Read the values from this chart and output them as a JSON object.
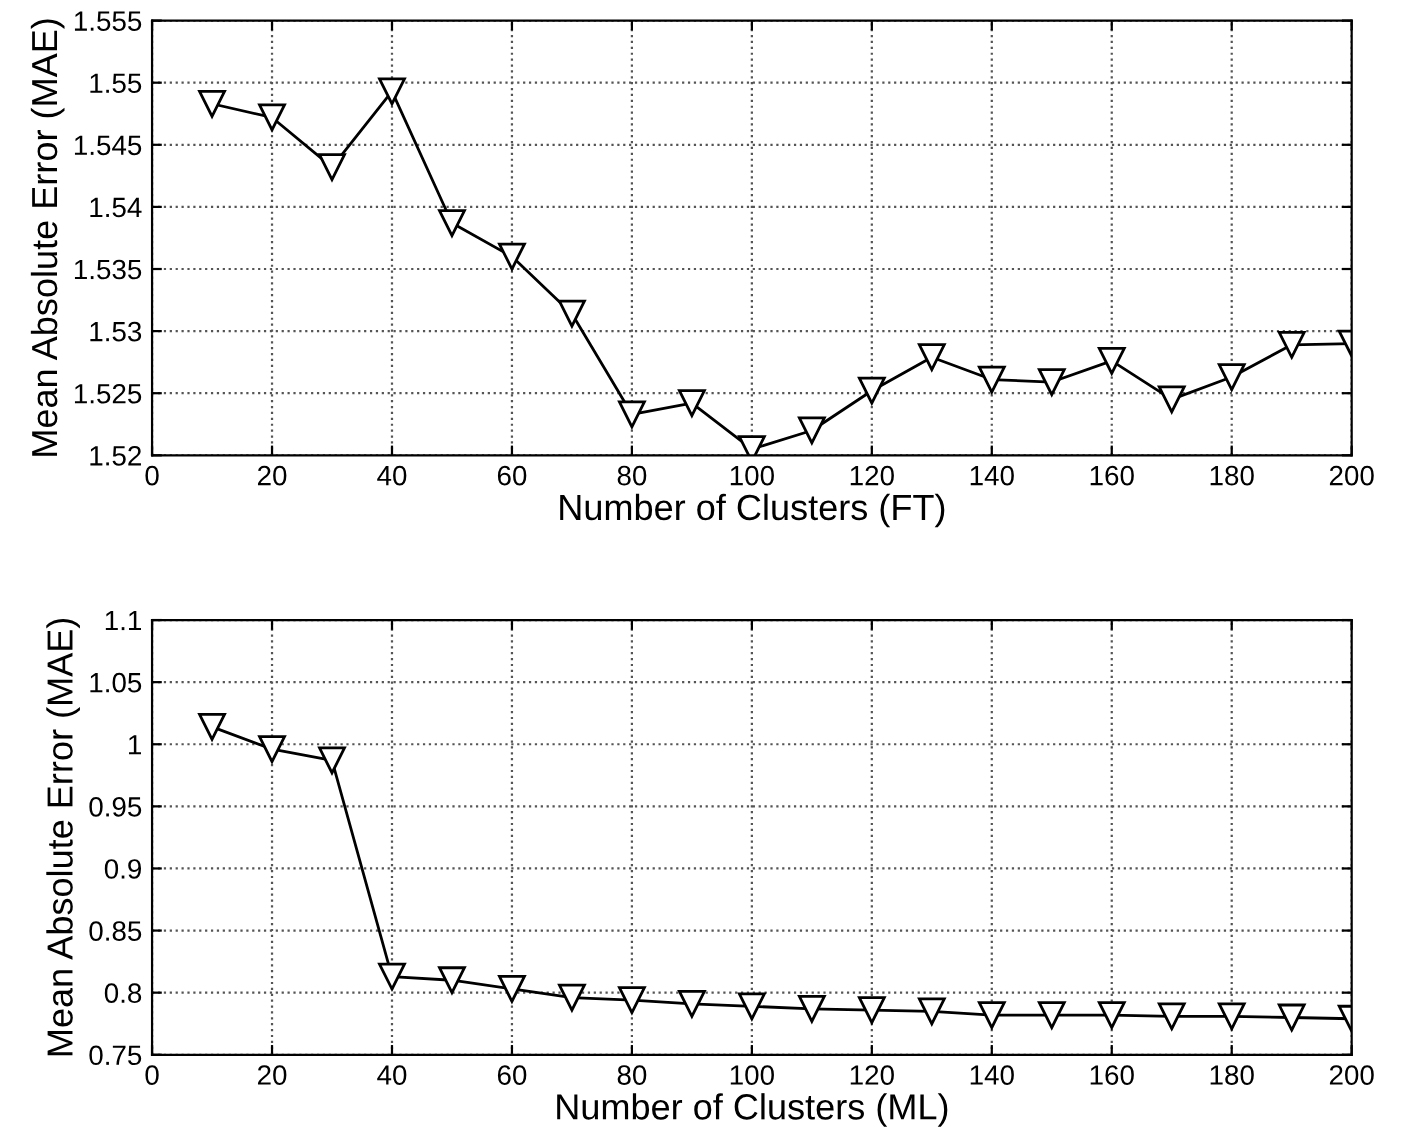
{
  "chart_data": [
    {
      "type": "line",
      "xlabel": "Number of Clusters (FT)",
      "ylabel": "Mean Absolute Error (MAE)",
      "marker": "triangle",
      "line_style": "solid",
      "grid": true,
      "x": [
        10,
        20,
        30,
        40,
        50,
        60,
        70,
        80,
        90,
        100,
        110,
        120,
        130,
        140,
        150,
        160,
        170,
        180,
        190,
        200
      ],
      "series": [
        {
          "color": "#000000",
          "values": [
            1.5483,
            1.5472,
            1.5432,
            1.5493,
            1.5387,
            1.536,
            1.5314,
            1.5233,
            1.5242,
            1.5205,
            1.522,
            1.5252,
            1.5279,
            1.5261,
            1.5259,
            1.5276,
            1.5245,
            1.5263,
            1.5289,
            1.529
          ]
        }
      ],
      "xlim": [
        0,
        200
      ],
      "xticks": [
        0,
        20,
        40,
        60,
        80,
        100,
        120,
        140,
        160,
        180,
        200
      ],
      "ylim": [
        1.52,
        1.555
      ],
      "yticks": [
        1.52,
        1.525,
        1.53,
        1.535,
        1.54,
        1.545,
        1.55,
        1.555
      ]
    },
    {
      "type": "line",
      "xlabel": "Number of Clusters (ML)",
      "ylabel": "Mean Absolute Error (MAE)",
      "marker": "triangle",
      "line_style": "solid",
      "grid": true,
      "x": [
        10,
        20,
        30,
        40,
        50,
        60,
        70,
        80,
        90,
        100,
        110,
        120,
        130,
        140,
        150,
        160,
        170,
        180,
        190,
        200
      ],
      "series": [
        {
          "color": "#000000",
          "values": [
            1.014,
            0.996,
            0.987,
            0.813,
            0.81,
            0.803,
            0.796,
            0.794,
            0.791,
            0.789,
            0.787,
            0.786,
            0.785,
            0.782,
            0.782,
            0.782,
            0.781,
            0.781,
            0.78,
            0.779
          ]
        }
      ],
      "xlim": [
        0,
        200
      ],
      "xticks": [
        0,
        20,
        40,
        60,
        80,
        100,
        120,
        140,
        160,
        180,
        200
      ],
      "ylim": [
        0.75,
        1.1
      ],
      "yticks": [
        0.75,
        0.8,
        0.85,
        0.9,
        0.95,
        1,
        1.05,
        1.1
      ]
    }
  ]
}
